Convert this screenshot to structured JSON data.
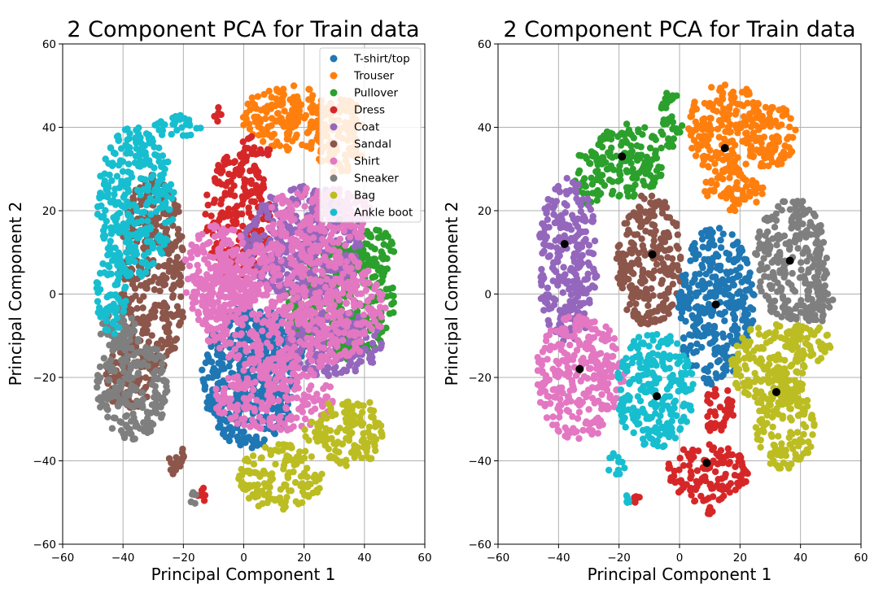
{
  "figure": {
    "background": "#ffffff",
    "grid_color": "#b0b0b0"
  },
  "chart_data": [
    {
      "type": "scatter",
      "title": "2 Component PCA for Train data",
      "xlabel": "Principal Component 1",
      "ylabel": "Principal Component 2",
      "xlim": [
        -60,
        60
      ],
      "ylim": [
        -60,
        60
      ],
      "xticks": [
        -60,
        -40,
        -20,
        0,
        20,
        40,
        60
      ],
      "yticks": [
        -60,
        -40,
        -20,
        0,
        20,
        40,
        60
      ],
      "xtick_labels": [
        "−60",
        "−40",
        "−20",
        "0",
        "20",
        "40",
        "60"
      ],
      "ytick_labels": [
        "−60",
        "−40",
        "−20",
        "0",
        "20",
        "40",
        "60"
      ],
      "grid": true,
      "legend": "top-right",
      "series": [
        {
          "name": "T-shirt/top",
          "color": "#1f77b4",
          "regions": [
            {
              "cx": 2,
              "cy": -20,
              "rx": 16,
              "ry": 17
            },
            {
              "cx": 10,
              "cy": -12,
              "rx": 10,
              "ry": 8
            }
          ]
        },
        {
          "name": "Trouser",
          "color": "#ff7f0e",
          "regions": [
            {
              "cx": 15,
              "cy": 42,
              "rx": 16,
              "ry": 8
            },
            {
              "cx": 32,
              "cy": 38,
              "rx": 9,
              "ry": 9
            },
            {
              "cx": 27,
              "cy": 2,
              "rx": 2,
              "ry": 2
            }
          ]
        },
        {
          "name": "Pullover",
          "color": "#2ca02c",
          "regions": [
            {
              "cx": 32,
              "cy": -2,
              "rx": 18,
              "ry": 14
            },
            {
              "cx": 42,
              "cy": 10,
              "rx": 8,
              "ry": 6
            }
          ]
        },
        {
          "name": "Dress",
          "color": "#d62728",
          "regions": [
            {
              "cx": -2,
              "cy": 18,
              "rx": 11,
              "ry": 16
            },
            {
              "cx": 4,
              "cy": 35,
              "rx": 5,
              "ry": 3
            },
            {
              "cx": -9,
              "cy": 43,
              "rx": 2,
              "ry": 2
            },
            {
              "cx": -14,
              "cy": -48,
              "rx": 1.5,
              "ry": 2
            }
          ]
        },
        {
          "name": "Coat",
          "color": "#9467bd",
          "regions": [
            {
              "cx": 20,
              "cy": 12,
              "rx": 20,
              "ry": 14
            },
            {
              "cx": 30,
              "cy": -12,
              "rx": 16,
              "ry": 8
            }
          ]
        },
        {
          "name": "Sandal",
          "color": "#8c564b",
          "regions": [
            {
              "cx": -30,
              "cy": 5,
              "rx": 11,
              "ry": 24
            },
            {
              "cx": -38,
              "cy": -20,
              "rx": 8,
              "ry": 8
            },
            {
              "cx": -22,
              "cy": -40,
              "rx": 3,
              "ry": 4
            }
          ]
        },
        {
          "name": "Shirt",
          "color": "#e377c2",
          "regions": [
            {
              "cx": 15,
              "cy": -3,
              "rx": 32,
              "ry": 16
            },
            {
              "cx": 10,
              "cy": -25,
              "rx": 20,
              "ry": 8
            },
            {
              "cx": 25,
              "cy": 18,
              "rx": 18,
              "ry": 8
            },
            {
              "cx": -8,
              "cy": 5,
              "rx": 12,
              "ry": 12
            }
          ]
        },
        {
          "name": "Sneaker",
          "color": "#7f7f7f",
          "regions": [
            {
              "cx": -37,
              "cy": -22,
              "rx": 12,
              "ry": 13
            },
            {
              "cx": -42,
              "cy": -8,
              "rx": 6,
              "ry": 6
            },
            {
              "cx": -17,
              "cy": -49,
              "rx": 1.5,
              "ry": 1.5
            }
          ]
        },
        {
          "name": "Bag",
          "color": "#bcbd22",
          "regions": [
            {
              "cx": 12,
              "cy": -44,
              "rx": 14,
              "ry": 8
            },
            {
              "cx": 35,
              "cy": -33,
              "rx": 11,
              "ry": 9
            },
            {
              "cx": 25,
              "cy": -33,
              "rx": 5,
              "ry": 3
            }
          ]
        },
        {
          "name": "Ankle boot",
          "color": "#17becf",
          "regions": [
            {
              "cx": -36,
              "cy": 22,
              "rx": 13,
              "ry": 18
            },
            {
              "cx": -44,
              "cy": 0,
              "rx": 5,
              "ry": 10
            },
            {
              "cx": -22,
              "cy": 40,
              "rx": 8,
              "ry": 3
            }
          ]
        }
      ]
    },
    {
      "type": "scatter",
      "title": "2 Component PCA for Train data",
      "xlabel": "Principal Component 1",
      "ylabel": "Principal Component 2",
      "xlim": [
        -60,
        60
      ],
      "ylim": [
        -60,
        60
      ],
      "xticks": [
        -60,
        -40,
        -20,
        0,
        20,
        40,
        60
      ],
      "yticks": [
        -60,
        -40,
        -20,
        0,
        20,
        40,
        60
      ],
      "xtick_labels": [
        "−60",
        "−40",
        "−20",
        "0",
        "20",
        "40",
        "60"
      ],
      "ytick_labels": [
        "−60",
        "−40",
        "−20",
        "0",
        "20",
        "40",
        "60"
      ],
      "grid": true,
      "legend": "none",
      "centroid_color": "#000000",
      "clusters": [
        {
          "color": "#ff7f0e",
          "centroid": [
            15,
            35
          ],
          "regions": [
            {
              "cx": 15,
              "cy": 40,
              "rx": 13,
              "ry": 11
            },
            {
              "cx": 30,
              "cy": 38,
              "rx": 9,
              "ry": 8
            },
            {
              "cx": 18,
              "cy": 25,
              "rx": 10,
              "ry": 5
            }
          ]
        },
        {
          "color": "#2ca02c",
          "centroid": [
            -19,
            33
          ],
          "regions": [
            {
              "cx": -17,
              "cy": 32,
              "rx": 12,
              "ry": 9
            },
            {
              "cx": -3,
              "cy": 42,
              "rx": 4,
              "ry": 7
            },
            {
              "cx": -30,
              "cy": 28,
              "rx": 5,
              "ry": 7
            }
          ]
        },
        {
          "color": "#9467bd",
          "centroid": [
            -38,
            12
          ],
          "regions": [
            {
              "cx": -37,
              "cy": 8,
              "rx": 10,
              "ry": 20
            }
          ]
        },
        {
          "color": "#8c564b",
          "centroid": [
            -9,
            9.5
          ],
          "regions": [
            {
              "cx": -10,
              "cy": 8,
              "rx": 11,
              "ry": 16
            }
          ]
        },
        {
          "color": "#1f77b4",
          "centroid": [
            12,
            -2.5
          ],
          "regions": [
            {
              "cx": 12,
              "cy": -3,
              "rx": 13,
              "ry": 19
            }
          ]
        },
        {
          "color": "#7f7f7f",
          "centroid": [
            36.5,
            8
          ],
          "regions": [
            {
              "cx": 37,
              "cy": 8,
              "rx": 12,
              "ry": 15
            },
            {
              "cx": 45,
              "cy": -2,
              "rx": 6,
              "ry": 5
            }
          ]
        },
        {
          "color": "#e377c2",
          "centroid": [
            -33,
            -18
          ],
          "regions": [
            {
              "cx": -33,
              "cy": -20,
              "rx": 15,
              "ry": 15
            }
          ]
        },
        {
          "color": "#17becf",
          "centroid": [
            -7.5,
            -24.5
          ],
          "regions": [
            {
              "cx": -8,
              "cy": -23,
              "rx": 13,
              "ry": 14
            },
            {
              "cx": -21,
              "cy": -41,
              "rx": 3,
              "ry": 3
            },
            {
              "cx": -17,
              "cy": -49,
              "rx": 1.2,
              "ry": 1.2
            }
          ]
        },
        {
          "color": "#bcbd22",
          "centroid": [
            32,
            -23.5
          ],
          "regions": [
            {
              "cx": 30,
              "cy": -17,
              "rx": 13,
              "ry": 10
            },
            {
              "cx": 35,
              "cy": -32,
              "rx": 10,
              "ry": 10
            },
            {
              "cx": 42,
              "cy": -12,
              "rx": 8,
              "ry": 5
            }
          ]
        },
        {
          "color": "#d62728",
          "centroid": [
            9,
            -40.5
          ],
          "regions": [
            {
              "cx": 9,
              "cy": -43,
              "rx": 14,
              "ry": 7
            },
            {
              "cx": 13,
              "cy": -28,
              "rx": 5,
              "ry": 6
            },
            {
              "cx": -14,
              "cy": -49,
              "rx": 1.2,
              "ry": 1.2
            },
            {
              "cx": 10,
              "cy": -52,
              "rx": 1.2,
              "ry": 1.2
            }
          ]
        }
      ]
    }
  ]
}
